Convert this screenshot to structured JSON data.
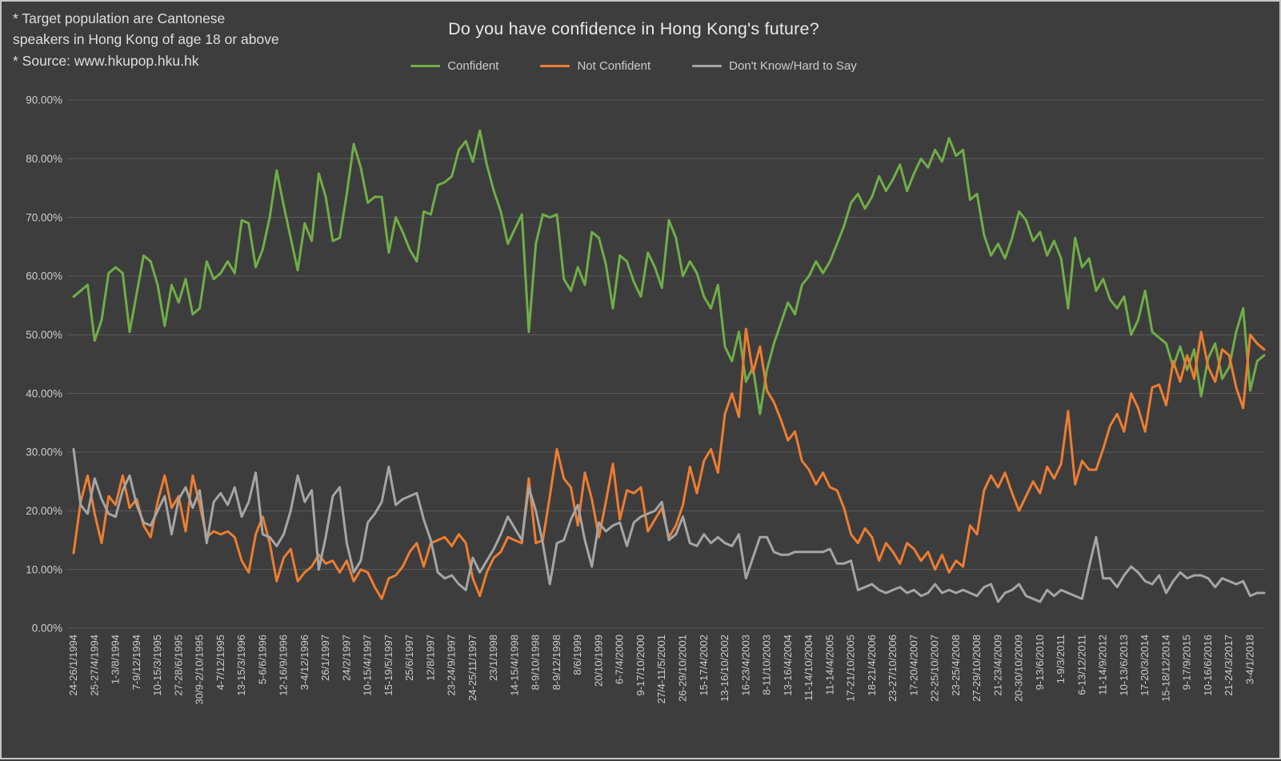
{
  "annotation": {
    "line1": "* Target population are Cantonese",
    "line2": "speakers in Hong Kong of age 18 or above",
    "line3": "* Source: www.hkupop.hku.hk"
  },
  "chart_data": {
    "type": "line",
    "title": "Do you have confidence in Hong Kong's future?",
    "grid": true,
    "legend_position": "top",
    "background_color": "#3D3D3D",
    "gridline_color": "#5C5C5C",
    "text_color": "#CDCDCD",
    "y_axis": {
      "min": 0,
      "max": 90,
      "step": 10,
      "tick_labels": [
        "0.00%",
        "10.00%",
        "20.00%",
        "30.00%",
        "40.00%",
        "50.00%",
        "60.00%",
        "70.00%",
        "80.00%",
        "90.00%"
      ]
    },
    "x_axis": {
      "label_every_n_points": 3,
      "tick_labels": [
        "24-26/1/1994",
        "25-27/4/1994",
        "1-3/8/1994",
        "7-9/12/1994",
        "10-15/3/1995",
        "27-28/6/1995",
        "30/9-2/10/1995",
        "4-7/12/1995",
        "13-15/3/1996",
        "5-6/6/1996",
        "12-16/9/1996",
        "3-4/12/1996",
        "26/1/1997",
        "24/2/1997",
        "10-15/4/1997",
        "15-19/5/1997",
        "25/6/1997",
        "12/8/1997",
        "23-24/9/1997",
        "24-25/11/1997",
        "23/1/1998",
        "14-15/4/1998",
        "8-9/10/1998",
        "8-9/12/1998",
        "8/6/1999",
        "20/10/1999",
        "6-7/4/2000",
        "9-17/10/2000",
        "27/4-11/5/2001",
        "26-29/10/2001",
        "15-17/4/2002",
        "13-16/10/2002",
        "16-23/4/2003",
        "8-11/10/2003",
        "13-16/4/2004",
        "11-14/10/2004",
        "11-14/4/2005",
        "17-21/10/2005",
        "18-21/4/2006",
        "23-27/10/2006",
        "17-20/4/2007",
        "22-25/10/2007",
        "23-25/4/2008",
        "27-29/10/2008",
        "21-23/4/2009",
        "20-30/10/2009",
        "9-13/6/2010",
        "1-9/3/2011",
        "6-13/12/2011",
        "11-14/9/2012",
        "10-13/6/2013",
        "17-20/3/2014",
        "15-18/12/2014",
        "9-17/9/2015",
        "10-16/6/2016",
        "21-24/3/2017",
        "3-4/1/2018"
      ]
    },
    "series": [
      {
        "name": "Confident",
        "color": "#70AD47",
        "values": [
          56.5,
          57.5,
          58.5,
          49,
          52.5,
          60.5,
          61.5,
          60.5,
          50.5,
          57,
          63.5,
          62.5,
          58.5,
          51.5,
          58.5,
          55.5,
          59.5,
          53.5,
          54.5,
          62.5,
          59.5,
          60.5,
          62.5,
          60.5,
          69.5,
          69,
          61.5,
          64.5,
          70,
          78,
          72,
          66.5,
          61,
          69,
          66,
          77.5,
          73.5,
          66,
          66.5,
          74,
          82.5,
          78.5,
          72.5,
          73.5,
          73.5,
          64,
          70,
          67.5,
          64.5,
          62.5,
          71,
          70.5,
          75.5,
          76,
          77,
          81.5,
          83,
          79.5,
          84.8,
          79,
          74.5,
          71,
          65.5,
          68,
          70.5,
          50.5,
          65.5,
          70.5,
          70,
          70.5,
          59.5,
          57.5,
          61.5,
          58.5,
          67.5,
          66.5,
          62,
          54.5,
          63.5,
          62.5,
          59,
          56.5,
          64,
          61.5,
          58,
          69.5,
          66.5,
          60,
          62.5,
          60.5,
          56.5,
          54.5,
          58.5,
          48,
          45.5,
          50.5,
          42,
          44.5,
          36.5,
          44,
          48.5,
          52,
          55.5,
          53.5,
          58.5,
          60,
          62.5,
          60.5,
          62.5,
          65.5,
          68.5,
          72.5,
          74,
          71.5,
          73.5,
          77,
          74.5,
          76.5,
          79,
          74.5,
          77.5,
          80,
          78.5,
          81.5,
          79.5,
          83.5,
          80.5,
          81.5,
          73,
          74,
          67,
          63.5,
          65.5,
          63,
          66.5,
          71,
          69.5,
          66,
          67.5,
          63.5,
          66,
          63,
          54.5,
          66.5,
          61.5,
          63,
          57.5,
          59.5,
          56,
          54.5,
          56.5,
          50,
          52.5,
          57.5,
          50.5,
          49.5,
          48.5,
          44.5,
          48,
          44,
          47.5,
          39.5,
          46,
          48.5,
          42.5,
          44.5,
          50.5,
          54.5,
          40.5,
          45.5,
          46.5
        ]
      },
      {
        "name": "Not Confident",
        "color": "#ED7D31",
        "values": [
          12.8,
          21.5,
          26,
          19.5,
          14.5,
          22.5,
          21,
          26,
          20.5,
          22,
          17.5,
          15.5,
          21.5,
          26,
          20.5,
          22.5,
          16.5,
          26,
          21,
          15.5,
          16.5,
          16,
          16.5,
          15.5,
          11.5,
          9.5,
          16,
          19,
          14.5,
          8,
          12,
          13.5,
          8,
          9.5,
          10.5,
          12.5,
          11,
          11.5,
          9.5,
          11.5,
          8,
          10,
          9.5,
          7,
          5,
          8.5,
          9,
          10.5,
          13,
          14.5,
          10.5,
          14.5,
          15,
          15.5,
          14,
          16,
          14.5,
          8.5,
          5.5,
          9.5,
          12,
          13,
          15.5,
          15,
          14.5,
          25.5,
          14.5,
          15,
          22.5,
          30.5,
          25.5,
          24,
          17.5,
          26.5,
          22,
          15.5,
          21.5,
          28,
          18.5,
          23.5,
          23,
          24,
          16.5,
          18.5,
          20.5,
          15.5,
          17.5,
          21,
          27.5,
          23,
          28.5,
          30.5,
          26.5,
          36.5,
          40,
          36,
          51,
          43.5,
          48,
          40.5,
          38.5,
          35.5,
          32,
          33.5,
          28.5,
          27,
          24.5,
          26.5,
          24,
          23.5,
          20.5,
          16,
          14.5,
          17,
          15.5,
          11.5,
          14.5,
          13,
          11,
          14.5,
          13.5,
          11.5,
          13,
          10,
          12.5,
          9.5,
          11.5,
          10.5,
          17.5,
          16,
          23.5,
          26,
          24,
          26.5,
          23,
          20,
          22.5,
          25,
          23,
          27.5,
          25.5,
          28,
          37,
          24.5,
          28.5,
          27,
          27,
          30.5,
          34.5,
          36.5,
          33.5,
          40,
          37.5,
          33.5,
          41,
          41.5,
          38,
          45.5,
          42,
          46.5,
          42.5,
          50.5,
          44.5,
          42,
          47.5,
          46.5,
          41,
          37.5,
          50,
          48.5,
          47.5
        ]
      },
      {
        "name": "Don't Know/Hard to Say",
        "color": "#A5A5A5",
        "values": [
          30.5,
          21,
          19.5,
          25.5,
          22,
          19.5,
          19,
          23.5,
          26,
          21,
          18,
          17.5,
          20,
          22.5,
          16,
          22,
          24,
          20.5,
          23.5,
          14.5,
          21.5,
          23,
          21,
          24,
          19,
          21.5,
          26.5,
          16,
          15.5,
          14,
          16,
          20,
          26,
          21.5,
          23.5,
          10,
          15.5,
          22.5,
          24,
          14.5,
          9.5,
          11.5,
          18,
          19.5,
          21.5,
          27.5,
          21,
          22,
          22.5,
          23,
          18.5,
          15,
          9.5,
          8.5,
          9,
          7.5,
          6.5,
          12,
          9.5,
          11.5,
          13.5,
          16,
          19,
          17,
          15,
          24,
          20,
          14.5,
          7.5,
          14.5,
          15,
          18.5,
          21,
          15,
          10.5,
          18,
          16.5,
          17.5,
          18,
          14,
          18,
          19,
          19.5,
          20,
          21.5,
          15,
          16,
          19,
          14.5,
          14,
          16,
          14.5,
          15.5,
          14.5,
          14,
          16,
          8.5,
          12,
          15.5,
          15.5,
          13,
          12.5,
          12.5,
          13,
          13,
          13,
          13,
          13,
          13.5,
          11,
          11,
          11.5,
          6.5,
          7,
          7.5,
          6.5,
          6,
          6.5,
          7,
          6,
          6.5,
          5.5,
          6,
          7.5,
          6,
          6.5,
          6,
          6.5,
          6,
          5.5,
          7,
          7.5,
          4.5,
          6,
          6.5,
          7.5,
          5.5,
          5,
          4.5,
          6.5,
          5.5,
          6.5,
          6,
          5.5,
          5,
          10.5,
          15.5,
          8.5,
          8.5,
          7,
          9,
          10.5,
          9.5,
          8,
          7.5,
          9,
          6,
          8,
          9.5,
          8.5,
          9,
          9,
          8.5,
          7,
          8.5,
          8,
          7.5,
          8,
          5.5,
          6,
          6
        ]
      }
    ]
  }
}
